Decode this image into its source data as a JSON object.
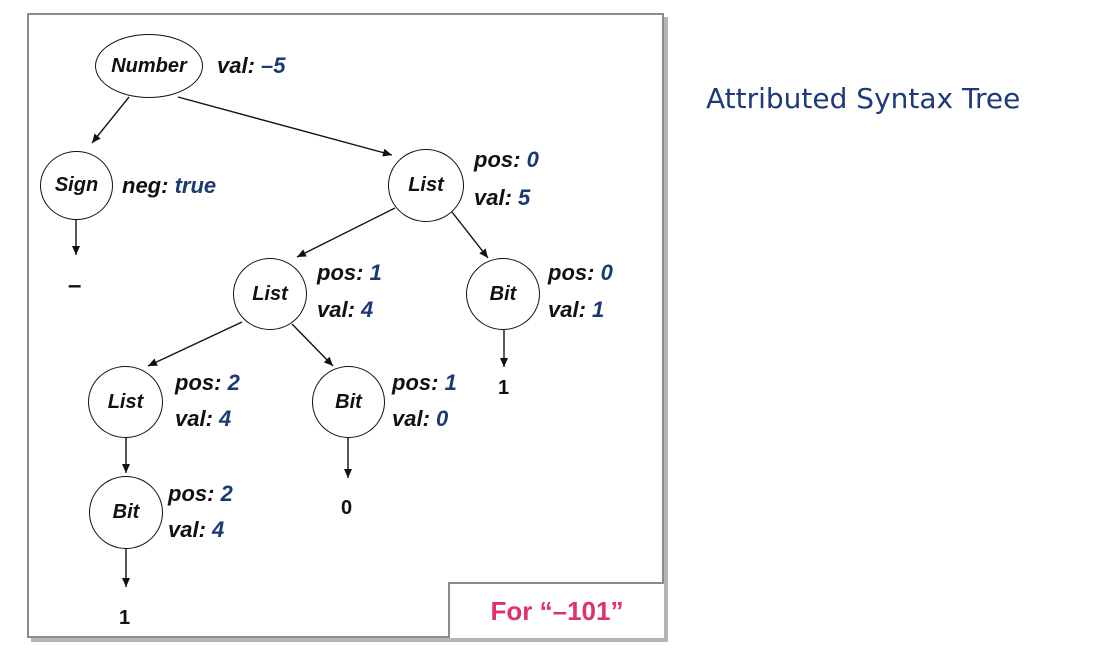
{
  "title": "Attributed Syntax Tree",
  "caption": "For “–101”",
  "colors": {
    "value": "#1b3a73",
    "caption": "#e0316b",
    "title": "#1f3a78"
  },
  "nodes": {
    "number": {
      "label": "Number",
      "attrs": [
        {
          "key": "val:",
          "value": "–5"
        }
      ]
    },
    "sign": {
      "label": "Sign",
      "attrs": [
        {
          "key": "neg:",
          "value": "true"
        }
      ]
    },
    "list0": {
      "label": "List",
      "attrs": [
        {
          "key": "pos:",
          "value": "0"
        },
        {
          "key": "val:",
          "value": "5"
        }
      ]
    },
    "list1": {
      "label": "List",
      "attrs": [
        {
          "key": "pos:",
          "value": "1"
        },
        {
          "key": "val:",
          "value": "4"
        }
      ]
    },
    "bit0": {
      "label": "Bit",
      "attrs": [
        {
          "key": "pos:",
          "value": "0"
        },
        {
          "key": "val:",
          "value": "1"
        }
      ]
    },
    "list2": {
      "label": "List",
      "attrs": [
        {
          "key": "pos:",
          "value": "2"
        },
        {
          "key": "val:",
          "value": "4"
        }
      ]
    },
    "bit1": {
      "label": "Bit",
      "attrs": [
        {
          "key": "pos:",
          "value": "1"
        },
        {
          "key": "val:",
          "value": "0"
        }
      ]
    },
    "bit2": {
      "label": "Bit",
      "attrs": [
        {
          "key": "pos:",
          "value": "2"
        },
        {
          "key": "val:",
          "value": "4"
        }
      ]
    }
  },
  "leaves": {
    "sign": "–",
    "bit0": "1",
    "bit1": "0",
    "bit2": "1"
  }
}
